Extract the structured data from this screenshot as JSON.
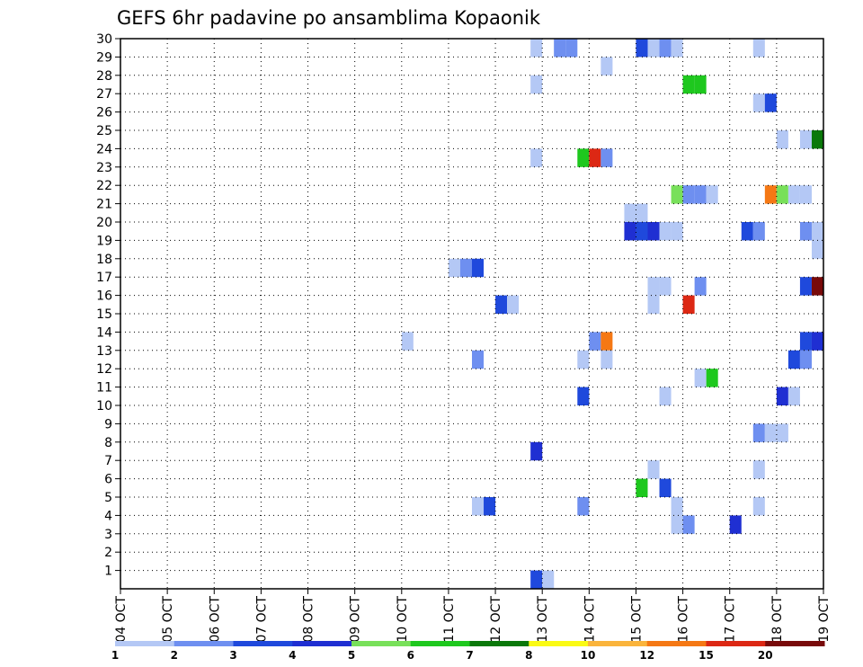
{
  "chart_data": {
    "type": "heatmap",
    "title": "GEFS 6hr padavine po ansamblima Kopaonik",
    "x_ticks": [
      "04 OCT",
      "05 OCT",
      "06 OCT",
      "07 OCT",
      "08 OCT",
      "09 OCT",
      "10 OCT",
      "11 OCT",
      "12 OCT",
      "13 OCT",
      "14 OCT",
      "15 OCT",
      "16 OCT",
      "17 OCT",
      "18 OCT",
      "19 OCT"
    ],
    "y_ticks": [
      "1",
      "2",
      "3",
      "4",
      "5",
      "6",
      "7",
      "8",
      "9",
      "10",
      "11",
      "12",
      "13",
      "14",
      "15",
      "16",
      "17",
      "18",
      "19",
      "20",
      "21",
      "22",
      "23",
      "24",
      "25",
      "26",
      "27",
      "28",
      "29",
      "30"
    ],
    "x_range": [
      0,
      60
    ],
    "y_range": [
      0,
      30
    ],
    "steps_per_day": 4,
    "grid": true,
    "legend_position": "bottom",
    "legend": {
      "labels": [
        "1",
        "2",
        "3",
        "4",
        "5",
        "6",
        "7",
        "8",
        "10",
        "12",
        "15",
        "20"
      ],
      "colors": [
        "#b4c8f5",
        "#6e8ff0",
        "#1f49dc",
        "#1f2fd2",
        "#78e05a",
        "#1ec81e",
        "#0a780a",
        "#fafa14",
        "#fab43c",
        "#f57814",
        "#dc2814",
        "#780a0a"
      ]
    },
    "cells": [
      {
        "step": 35,
        "member": 30,
        "level": 1
      },
      {
        "step": 37,
        "member": 30,
        "level": 1
      },
      {
        "step": 37,
        "member": 30,
        "level": 2
      },
      {
        "step": 38,
        "member": 30,
        "level": 2
      },
      {
        "step": 44,
        "member": 30,
        "level": 3
      },
      {
        "step": 45,
        "member": 30,
        "level": 1
      },
      {
        "step": 46,
        "member": 30,
        "level": 2
      },
      {
        "step": 47,
        "member": 30,
        "level": 1
      },
      {
        "step": 54,
        "member": 30,
        "level": 1
      },
      {
        "step": 41,
        "member": 29,
        "level": 1
      },
      {
        "step": 35,
        "member": 28,
        "level": 1
      },
      {
        "step": 48,
        "member": 28,
        "level": 6
      },
      {
        "step": 49,
        "member": 28,
        "level": 6
      },
      {
        "step": 54,
        "member": 27,
        "level": 1
      },
      {
        "step": 55,
        "member": 27,
        "level": 3
      },
      {
        "step": 56,
        "member": 25,
        "level": 1
      },
      {
        "step": 58,
        "member": 25,
        "level": 1
      },
      {
        "step": 59,
        "member": 25,
        "level": 7
      },
      {
        "step": 35,
        "member": 24,
        "level": 1
      },
      {
        "step": 39,
        "member": 24,
        "level": 6
      },
      {
        "step": 40,
        "member": 24,
        "level": 11
      },
      {
        "step": 41,
        "member": 24,
        "level": 2
      },
      {
        "step": 47,
        "member": 22,
        "level": 5
      },
      {
        "step": 48,
        "member": 22,
        "level": 2
      },
      {
        "step": 49,
        "member": 22,
        "level": 2
      },
      {
        "step": 50,
        "member": 22,
        "level": 1
      },
      {
        "step": 55,
        "member": 22,
        "level": 10
      },
      {
        "step": 56,
        "member": 22,
        "level": 5
      },
      {
        "step": 57,
        "member": 22,
        "level": 1
      },
      {
        "step": 58,
        "member": 22,
        "level": 1
      },
      {
        "step": 43,
        "member": 21,
        "level": 1
      },
      {
        "step": 44,
        "member": 21,
        "level": 1
      },
      {
        "step": 43,
        "member": 20,
        "level": 4
      },
      {
        "step": 44,
        "member": 20,
        "level": 3
      },
      {
        "step": 45,
        "member": 20,
        "level": 4
      },
      {
        "step": 46,
        "member": 20,
        "level": 1
      },
      {
        "step": 47,
        "member": 20,
        "level": 1
      },
      {
        "step": 53,
        "member": 20,
        "level": 3
      },
      {
        "step": 54,
        "member": 20,
        "level": 2
      },
      {
        "step": 58,
        "member": 20,
        "level": 2
      },
      {
        "step": 59,
        "member": 20,
        "level": 1
      },
      {
        "step": 59,
        "member": 19,
        "level": 1
      },
      {
        "step": 28,
        "member": 18,
        "level": 1
      },
      {
        "step": 29,
        "member": 18,
        "level": 2
      },
      {
        "step": 30,
        "member": 18,
        "level": 3
      },
      {
        "step": 45,
        "member": 17,
        "level": 1
      },
      {
        "step": 46,
        "member": 17,
        "level": 1
      },
      {
        "step": 49,
        "member": 17,
        "level": 2
      },
      {
        "step": 58,
        "member": 17,
        "level": 3
      },
      {
        "step": 59,
        "member": 17,
        "level": 12
      },
      {
        "step": 32,
        "member": 16,
        "level": 3
      },
      {
        "step": 33,
        "member": 16,
        "level": 1
      },
      {
        "step": 45,
        "member": 16,
        "level": 1
      },
      {
        "step": 48,
        "member": 16,
        "level": 11
      },
      {
        "step": 24,
        "member": 14,
        "level": 1
      },
      {
        "step": 40,
        "member": 14,
        "level": 2
      },
      {
        "step": 41,
        "member": 14,
        "level": 10
      },
      {
        "step": 58,
        "member": 14,
        "level": 3
      },
      {
        "step": 59,
        "member": 14,
        "level": 4
      },
      {
        "step": 30,
        "member": 13,
        "level": 2
      },
      {
        "step": 39,
        "member": 13,
        "level": 1
      },
      {
        "step": 41,
        "member": 13,
        "level": 1
      },
      {
        "step": 57,
        "member": 13,
        "level": 3
      },
      {
        "step": 58,
        "member": 13,
        "level": 2
      },
      {
        "step": 49,
        "member": 12,
        "level": 1
      },
      {
        "step": 50,
        "member": 12,
        "level": 6
      },
      {
        "step": 39,
        "member": 11,
        "level": 3
      },
      {
        "step": 46,
        "member": 11,
        "level": 1
      },
      {
        "step": 56,
        "member": 11,
        "level": 4
      },
      {
        "step": 57,
        "member": 11,
        "level": 1
      },
      {
        "step": 54,
        "member": 9,
        "level": 2
      },
      {
        "step": 55,
        "member": 9,
        "level": 1
      },
      {
        "step": 56,
        "member": 9,
        "level": 1
      },
      {
        "step": 35,
        "member": 8,
        "level": 4
      },
      {
        "step": 45,
        "member": 7,
        "level": 1
      },
      {
        "step": 54,
        "member": 7,
        "level": 1
      },
      {
        "step": 44,
        "member": 6,
        "level": 6
      },
      {
        "step": 46,
        "member": 6,
        "level": 3
      },
      {
        "step": 30,
        "member": 5,
        "level": 1
      },
      {
        "step": 31,
        "member": 5,
        "level": 3
      },
      {
        "step": 39,
        "member": 5,
        "level": 2
      },
      {
        "step": 47,
        "member": 5,
        "level": 1
      },
      {
        "step": 54,
        "member": 5,
        "level": 1
      },
      {
        "step": 47,
        "member": 4,
        "level": 1
      },
      {
        "step": 48,
        "member": 4,
        "level": 2
      },
      {
        "step": 52,
        "member": 4,
        "level": 4
      },
      {
        "step": 35,
        "member": 1,
        "level": 3
      },
      {
        "step": 36,
        "member": 1,
        "level": 1
      }
    ]
  }
}
